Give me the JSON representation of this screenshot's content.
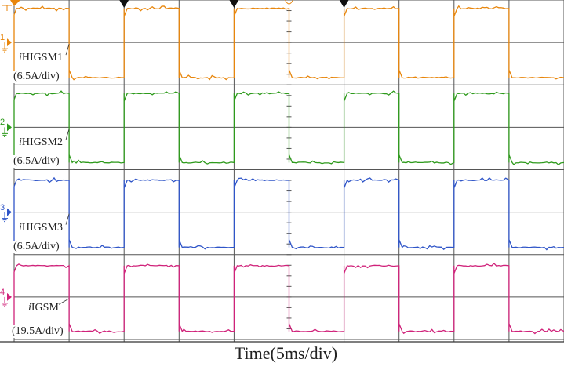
{
  "chart_data": {
    "type": "line",
    "xlabel": "Time(5ms/div)",
    "x_unit": "ms",
    "x_per_div": 5,
    "xlim": [
      0,
      50
    ],
    "grid": true,
    "divisions": {
      "x": 10,
      "y": 8
    },
    "series": [
      {
        "channel": "1",
        "symbol": "i",
        "name": "HIGSM1",
        "scale": "(6.5A/div)",
        "amps_per_div": 6.5,
        "color": "#e8860c",
        "x": [
          0,
          5,
          10,
          15,
          20,
          25,
          30,
          35,
          40,
          45,
          50
        ],
        "high": 5.2,
        "low": -5.4
      },
      {
        "channel": "2",
        "symbol": "i",
        "name": "HIGSM2",
        "scale": "(6.5A/div)",
        "amps_per_div": 6.5,
        "color": "#2e9a1c",
        "x": [
          0,
          5,
          10,
          15,
          20,
          25,
          30,
          35,
          40,
          45,
          50
        ],
        "high": 5.2,
        "low": -5.4
      },
      {
        "channel": "3",
        "symbol": "i",
        "name": "HIGSM3",
        "scale": "(6.5A/div)",
        "amps_per_div": 6.5,
        "color": "#2f55c8",
        "x": [
          0,
          5,
          10,
          15,
          20,
          25,
          30,
          35,
          40,
          45,
          50
        ],
        "high": 4.9,
        "low": -5.4
      },
      {
        "channel": "4",
        "symbol": "i",
        "name": "IGSM",
        "scale": "(19.5A/div)",
        "amps_per_div": 19.5,
        "color": "#d0227a",
        "x": [
          0,
          5,
          10,
          15,
          20,
          25,
          30,
          35,
          40,
          45,
          50
        ],
        "high": 14.4,
        "low": -15.8
      }
    ],
    "trigger_markers_ms": [
      10,
      20,
      30
    ]
  }
}
